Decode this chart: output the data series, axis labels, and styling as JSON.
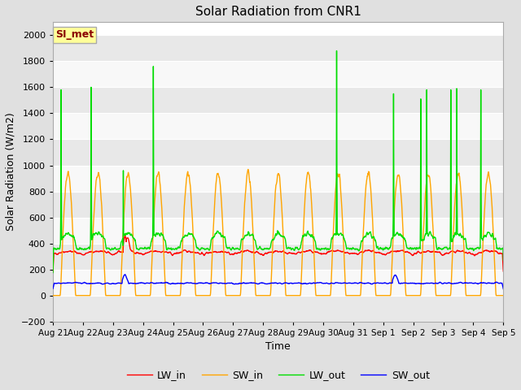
{
  "title": "Solar Radiation from CNR1",
  "xlabel": "Time",
  "ylabel": "Solar Radiation (W/m2)",
  "station_label": "SI_met",
  "ylim": [
    -200,
    2100
  ],
  "yticks": [
    -200,
    0,
    200,
    400,
    600,
    800,
    1000,
    1200,
    1400,
    1600,
    1800,
    2000
  ],
  "num_days": 15,
  "colors": {
    "LW_in": "#ff0000",
    "SW_in": "#ffa500",
    "LW_out": "#00dd00",
    "SW_out": "#0000ff"
  },
  "line_width": 1.0,
  "fig_facecolor": "#e0e0e0",
  "ax_facecolor": "#ffffff",
  "band_colors": [
    "#e8e8e8",
    "#f8f8f8"
  ],
  "grid_color": "#cccccc",
  "legend_labels": [
    "LW_in",
    "SW_in",
    "LW_out",
    "SW_out"
  ],
  "tick_labels": [
    "Aug 21",
    "Aug 22",
    "Aug 23",
    "Aug 24",
    "Aug 25",
    "Aug 26",
    "Aug 27",
    "Aug 28",
    "Aug 29",
    "Aug 30",
    "Aug 31",
    "Sep 1",
    "Sep 2",
    "Sep 3",
    "Sep 4",
    "Sep 5"
  ],
  "figsize": [
    6.4,
    4.8
  ],
  "dpi": 100
}
